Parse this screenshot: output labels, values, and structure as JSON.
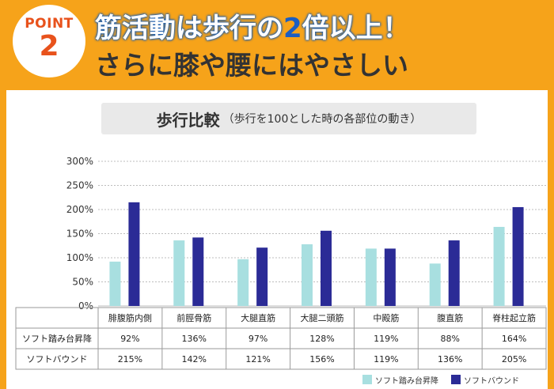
{
  "header": {
    "point_label": "POINT",
    "point_number": "2",
    "title_line1_pre": "筋活動は歩行の",
    "title_line1_hl": "2",
    "title_line1_post": "倍以上！",
    "title_line2": "さらに膝や腰にはやさしい"
  },
  "colors": {
    "background": "#f6a31a",
    "series_soft_step": "#a8dfe0",
    "series_soft_bound": "#2b2b96",
    "accent": "#e8521c"
  },
  "chart_data": {
    "type": "bar",
    "title": "歩行比較",
    "subtitle": "（歩行を100とした時の各部位の動き）",
    "categories": [
      "腓腹筋内側",
      "前脛骨筋",
      "大腿直筋",
      "大腿二頭筋",
      "中殿筋",
      "腹直筋",
      "脊柱起立筋"
    ],
    "series": [
      {
        "name": "ソフト踏み台昇降",
        "values": [
          92,
          136,
          97,
          128,
          119,
          88,
          164
        ],
        "labels": [
          "92%",
          "136%",
          "97%",
          "128%",
          "119%",
          "88%",
          "164%"
        ]
      },
      {
        "name": "ソフトバウンド",
        "values": [
          215,
          142,
          121,
          156,
          119,
          136,
          205
        ],
        "labels": [
          "215%",
          "142%",
          "121%",
          "156%",
          "119%",
          "136%",
          "205%"
        ]
      }
    ],
    "yticks": [
      "0%",
      "50%",
      "100%",
      "150%",
      "200%",
      "250%",
      "300%"
    ],
    "ylim": [
      0,
      300
    ],
    "grid": true,
    "legend": "bottom-right"
  }
}
